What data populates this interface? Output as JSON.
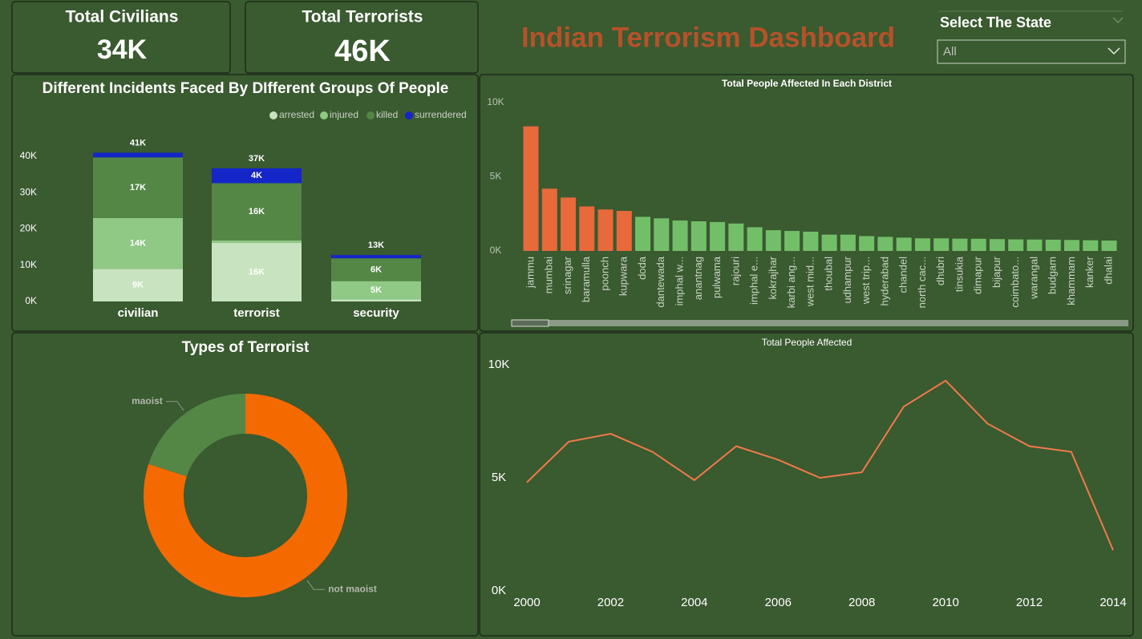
{
  "header": {
    "title": "Indian Terrorism Dashboard"
  },
  "cards": [
    {
      "title": "Total Civilians",
      "value": "34K"
    },
    {
      "title": "Total Terrorists",
      "value": "46K"
    }
  ],
  "slicer": {
    "label": "Select The State",
    "selected": "All"
  },
  "chart_data": [
    {
      "type": "bar",
      "stacked": true,
      "title": "Different Incidents Faced By DIfferent Groups Of People",
      "categories": [
        "civilian",
        "terrorist",
        "security"
      ],
      "series": [
        {
          "name": "arrested",
          "color": "#c8e3c0",
          "values": [
            9000,
            16200,
            600
          ],
          "value_labels": [
            "9K",
            "16K",
            null
          ]
        },
        {
          "name": "injured",
          "color": "#8fc985",
          "values": [
            14000,
            600,
            5000
          ],
          "value_labels": [
            "14K",
            null,
            "5K"
          ]
        },
        {
          "name": "killed",
          "color": "#548745",
          "values": [
            16700,
            15800,
            6300
          ],
          "value_labels": [
            "17K",
            "16K",
            "6K"
          ]
        },
        {
          "name": "surrendered",
          "color": "#1426c8",
          "values": [
            1300,
            4100,
            900
          ],
          "value_labels": [
            null,
            "4K",
            null
          ]
        }
      ],
      "total_labels": [
        "41K",
        "37K",
        "13K"
      ],
      "ylim": [
        0,
        40000
      ],
      "yticks": [
        {
          "value": 0,
          "label": "0K"
        },
        {
          "value": 10000,
          "label": "10K"
        },
        {
          "value": 20000,
          "label": "20K"
        },
        {
          "value": 30000,
          "label": "30K"
        },
        {
          "value": 40000,
          "label": "40K"
        }
      ],
      "grid": false
    },
    {
      "type": "bar",
      "title": "Total People Affected In Each District",
      "categories": [
        "jammu",
        "mumbai",
        "srinagar",
        "baramulla",
        "poonch",
        "kupwara",
        "doda",
        "dantewada",
        "imphal w...",
        "anantnag",
        "pulwama",
        "rajouri",
        "imphal e...",
        "kokrajhar",
        "karbi ang...",
        "west mid...",
        "thoubal",
        "udhampur",
        "west trip...",
        "hyderabad",
        "chandel",
        "north cac...",
        "dhubri",
        "tinsukia",
        "dimapur",
        "bijapur",
        "coimbato...",
        "warangal",
        "budgam",
        "khammam",
        "kanker",
        "dhalai"
      ],
      "values": [
        8400,
        4200,
        3600,
        3000,
        2800,
        2700,
        2300,
        2200,
        2050,
        2000,
        1950,
        1850,
        1600,
        1400,
        1350,
        1300,
        1100,
        1100,
        1000,
        950,
        900,
        850,
        850,
        830,
        820,
        800,
        780,
        770,
        760,
        740,
        720,
        700
      ],
      "colors": [
        "#e8693a",
        "#e8693a",
        "#e8693a",
        "#e8693a",
        "#e8693a",
        "#e8693a",
        "#73bf69",
        "#73bf69",
        "#73bf69",
        "#73bf69",
        "#73bf69",
        "#73bf69",
        "#73bf69",
        "#73bf69",
        "#73bf69",
        "#73bf69",
        "#73bf69",
        "#73bf69",
        "#73bf69",
        "#73bf69",
        "#73bf69",
        "#73bf69",
        "#73bf69",
        "#73bf69",
        "#73bf69",
        "#73bf69",
        "#73bf69",
        "#73bf69",
        "#73bf69",
        "#73bf69",
        "#73bf69",
        "#73bf69"
      ],
      "ylim": [
        0,
        10000
      ],
      "yticks": [
        {
          "value": 0,
          "label": "0K"
        },
        {
          "value": 5000,
          "label": "5K"
        },
        {
          "value": 10000,
          "label": "10K"
        }
      ],
      "grid": false
    },
    {
      "type": "donut",
      "title": "Types of Terrorist",
      "categories": [
        "not maoist",
        "maoist"
      ],
      "values": [
        80,
        20
      ],
      "colors": [
        "#f56a00",
        "#548745"
      ]
    },
    {
      "type": "line",
      "title": "Total People Affected",
      "x": [
        2000,
        2001,
        2002,
        2003,
        2004,
        2005,
        2006,
        2007,
        2008,
        2009,
        2010,
        2011,
        2012,
        2013,
        2014
      ],
      "values": [
        4800,
        6600,
        6950,
        6150,
        4900,
        6400,
        5800,
        5000,
        5250,
        8150,
        9300,
        7400,
        6400,
        6150,
        1800
      ],
      "color": "#f07a4a",
      "xlim": [
        2000,
        2014
      ],
      "xticks": [
        2000,
        2002,
        2004,
        2006,
        2008,
        2010,
        2012,
        2014
      ],
      "ylim": [
        0,
        10000
      ],
      "yticks": [
        {
          "value": 0,
          "label": "0K"
        },
        {
          "value": 5000,
          "label": "5K"
        },
        {
          "value": 10000,
          "label": "10K"
        }
      ],
      "grid": false
    }
  ]
}
